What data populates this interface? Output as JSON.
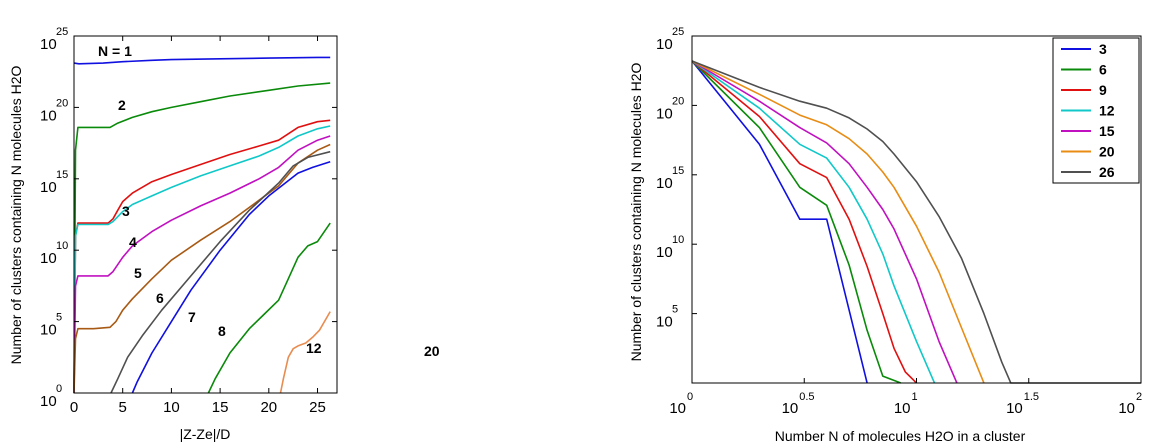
{
  "chart_data": [
    {
      "type": "line",
      "title": "",
      "xlabel": "|Z-Ze|/D",
      "ylabel": "Number of clusters containing N molecules H2O",
      "xlim": [
        0,
        27
      ],
      "ylim": [
        0,
        25
      ],
      "y_scale": "log10",
      "y_tick_base": "10",
      "xticks": [
        0,
        5,
        10,
        15,
        20,
        25
      ],
      "yticks": [
        0,
        5,
        10,
        15,
        20,
        25
      ],
      "grid": false,
      "annotations": [
        "N = 1",
        "2",
        "3",
        "4",
        "5",
        "6",
        "7",
        "8",
        "12",
        "20"
      ],
      "series": [
        {
          "name": "N = 1",
          "color": "#1010e0",
          "x": [
            0,
            0.5,
            3,
            5,
            8,
            10,
            15,
            20,
            25,
            26.3
          ],
          "y": [
            23.1,
            23.05,
            23.1,
            23.2,
            23.3,
            23.35,
            23.4,
            23.45,
            23.5,
            23.5
          ]
        },
        {
          "name": "2",
          "color": "#0a8a0a",
          "x": [
            0,
            0.15,
            0.4,
            1,
            3,
            3.7,
            4.5,
            6,
            8,
            10,
            13,
            16,
            20,
            23,
            26.3
          ],
          "y": [
            0,
            17,
            18.6,
            18.6,
            18.6,
            18.6,
            18.9,
            19.3,
            19.7,
            20,
            20.4,
            20.8,
            21.2,
            21.5,
            21.7
          ]
        },
        {
          "name": "3",
          "color": "#e01010",
          "x": [
            0,
            0.15,
            0.4,
            2,
            3.5,
            4,
            4.5,
            5,
            6,
            8,
            10,
            13,
            16,
            19,
            21,
            23,
            25,
            26.3
          ],
          "y": [
            0,
            11,
            11.9,
            11.9,
            11.9,
            12.2,
            12.8,
            13.4,
            14,
            14.8,
            15.3,
            16,
            16.7,
            17.3,
            17.7,
            18.6,
            19,
            19.1
          ]
        },
        {
          "name": "4",
          "color": "#10c8c8",
          "x": [
            0,
            0.15,
            0.4,
            2,
            3.5,
            4,
            5,
            6,
            8,
            10,
            13,
            16,
            19,
            21,
            23,
            25,
            26.3
          ],
          "y": [
            0,
            11,
            11.8,
            11.8,
            11.8,
            12,
            12.7,
            13.2,
            13.8,
            14.4,
            15.2,
            15.9,
            16.6,
            17.2,
            18,
            18.5,
            18.7
          ]
        },
        {
          "name": "5",
          "color": "#c010c0",
          "x": [
            0,
            0.15,
            0.4,
            2,
            3.5,
            4,
            5,
            6,
            8,
            10,
            13,
            16,
            19,
            21,
            23,
            25,
            26.3
          ],
          "y": [
            0,
            7.5,
            8.2,
            8.2,
            8.2,
            8.5,
            9.5,
            10.3,
            11.3,
            12.1,
            13.1,
            14,
            15,
            15.8,
            17,
            17.7,
            18
          ]
        },
        {
          "name": "6",
          "color": "#a85a14",
          "x": [
            0,
            0.15,
            0.4,
            2,
            3.7,
            4.3,
            5,
            6,
            8,
            10,
            13,
            16,
            19,
            21,
            23,
            25,
            26.3
          ],
          "y": [
            0,
            3.8,
            4.5,
            4.5,
            4.6,
            5,
            5.8,
            6.6,
            8,
            9.3,
            10.7,
            12,
            13.5,
            14.5,
            16.1,
            17,
            17.4
          ]
        },
        {
          "name": "7",
          "color": "#505050",
          "x": [
            3.8,
            4.5,
            5.5,
            7,
            9,
            12,
            15,
            18,
            21,
            22.5,
            24,
            26.3
          ],
          "y": [
            0,
            1,
            2.5,
            4,
            5.8,
            8.2,
            10.6,
            12.8,
            14.7,
            15.9,
            16.5,
            16.9
          ]
        },
        {
          "name": "8",
          "color": "#1010e0",
          "x": [
            6,
            6.5,
            8,
            10,
            12,
            15,
            18,
            20,
            21.5,
            23,
            24.5,
            26.3
          ],
          "y": [
            0,
            0.8,
            2.8,
            5,
            7.2,
            10,
            12.5,
            13.8,
            14.6,
            15.4,
            15.8,
            16.2
          ]
        },
        {
          "name": "12",
          "color": "#0a8a0a",
          "x": [
            13.8,
            14.5,
            16,
            18,
            19.5,
            21,
            22,
            23,
            24,
            25,
            26.3
          ],
          "y": [
            0,
            1,
            2.8,
            4.5,
            5.5,
            6.5,
            8,
            9.5,
            10.3,
            10.6,
            11.9
          ]
        },
        {
          "name": "20",
          "color": "#e88c50",
          "x": [
            21.2,
            21.5,
            22,
            22.5,
            23,
            23.8,
            24.5,
            25.2,
            26.3
          ],
          "y": [
            0,
            1,
            2.5,
            3.1,
            3.3,
            3.5,
            3.9,
            4.4,
            5.7
          ]
        }
      ]
    },
    {
      "type": "line",
      "title": "",
      "xlabel": "Number N of molecules H2O in a cluster",
      "ylabel": "Number of clusters containing N molecules H2O",
      "xlim": [
        0,
        2
      ],
      "ylim": [
        0,
        25
      ],
      "x_scale": "log10",
      "y_scale": "log10",
      "tick_base": "10",
      "xticks": [
        0,
        0.5,
        1,
        1.5,
        2
      ],
      "xtick_exponents": [
        "0",
        "0.5",
        "1",
        "1.5",
        "2"
      ],
      "yticks": [
        0,
        5,
        10,
        15,
        20,
        25
      ],
      "grid": false,
      "legend_position": "top-right",
      "series": [
        {
          "name": "3",
          "color": "#1010e0",
          "x": [
            0,
            0.3,
            0.48,
            0.6,
            0.78
          ],
          "y": [
            23.2,
            17.2,
            11.8,
            11.8,
            0
          ]
        },
        {
          "name": "6",
          "color": "#0a8a0a",
          "x": [
            0,
            0.3,
            0.48,
            0.6,
            0.7,
            0.78,
            0.85,
            0.93
          ],
          "y": [
            23.2,
            18.4,
            14.1,
            12.8,
            8.5,
            3.8,
            0.5,
            0
          ]
        },
        {
          "name": "9",
          "color": "#e01010",
          "x": [
            0,
            0.3,
            0.48,
            0.6,
            0.7,
            0.78,
            0.85,
            0.9,
            0.95,
            1.0
          ],
          "y": [
            23.2,
            19.2,
            15.8,
            14.8,
            11.8,
            8.4,
            5,
            2.5,
            0.8,
            0
          ]
        },
        {
          "name": "12",
          "color": "#10c8c8",
          "x": [
            0,
            0.3,
            0.48,
            0.6,
            0.7,
            0.78,
            0.85,
            0.9,
            1.0,
            1.08
          ],
          "y": [
            23.2,
            19.8,
            17.2,
            16.2,
            14.1,
            11.8,
            9.3,
            7,
            3,
            0
          ]
        },
        {
          "name": "15",
          "color": "#c010c0",
          "x": [
            0,
            0.3,
            0.48,
            0.6,
            0.7,
            0.78,
            0.85,
            0.9,
            1.0,
            1.1,
            1.18
          ],
          "y": [
            23.2,
            20.3,
            18.4,
            17.3,
            15.8,
            14.1,
            12.5,
            11.1,
            7.5,
            3,
            0
          ]
        },
        {
          "name": "20",
          "color": "#e88c14",
          "x": [
            0,
            0.3,
            0.48,
            0.6,
            0.7,
            0.78,
            0.85,
            0.9,
            1.0,
            1.1,
            1.2,
            1.3
          ],
          "y": [
            23.2,
            20.8,
            19.3,
            18.6,
            17.6,
            16.5,
            15.2,
            14.1,
            11.3,
            8,
            4,
            0
          ]
        },
        {
          "name": "26",
          "color": "#505050",
          "x": [
            0,
            0.3,
            0.48,
            0.6,
            0.7,
            0.78,
            0.85,
            0.9,
            1.0,
            1.1,
            1.2,
            1.3,
            1.38,
            1.42,
            2.0
          ],
          "y": [
            23.2,
            21.3,
            20.3,
            19.8,
            19.1,
            18.3,
            17.4,
            16.5,
            14.5,
            12,
            9,
            5,
            1.5,
            0,
            0
          ]
        }
      ]
    }
  ]
}
